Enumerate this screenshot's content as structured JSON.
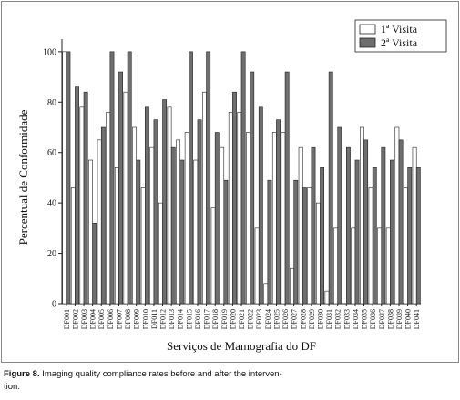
{
  "chart_data": {
    "type": "bar",
    "ylabel": "Percentual de Conformidade",
    "xlabel": "Serviços de Mamografia do DF",
    "categories": [
      "DF001",
      "DF002",
      "DF003",
      "DF004",
      "DF005",
      "DF006",
      "DF007",
      "DF008",
      "DF009",
      "DF010",
      "DF011",
      "DF012",
      "DF013",
      "DF014",
      "DF015",
      "DF016",
      "DF017",
      "DF018",
      "DF019",
      "DF020",
      "DF021",
      "DF022",
      "DF023",
      "DF024",
      "DF025",
      "DF026",
      "DF027",
      "DF028",
      "DF029",
      "DF030",
      "DF031",
      "DF032",
      "DF033",
      "DF034",
      "DF035",
      "DF036",
      "DF037",
      "DF038",
      "DF039",
      "DF040",
      "DF041"
    ],
    "series": [
      {
        "name": "1ª Visita",
        "color": "#ffffff",
        "values": [
          100,
          46,
          78,
          57,
          65,
          76,
          54,
          84,
          70,
          46,
          62,
          40,
          78,
          65,
          68,
          57,
          84,
          38,
          62,
          76,
          76,
          68,
          30,
          8,
          68,
          68,
          14,
          62,
          46,
          40,
          5,
          30,
          0,
          30,
          70,
          46,
          30,
          30,
          70,
          46,
          62
        ]
      },
      {
        "name": "2ª Visita",
        "color": "#6e6e6e",
        "values": [
          100,
          86,
          84,
          32,
          70,
          100,
          92,
          100,
          57,
          78,
          73,
          81,
          62,
          57,
          100,
          73,
          100,
          68,
          49,
          84,
          100,
          92,
          78,
          49,
          73,
          92,
          49,
          46,
          62,
          54,
          92,
          70,
          62,
          57,
          65,
          54,
          62,
          57,
          65,
          54,
          54
        ]
      }
    ],
    "ylim": [
      0,
      105
    ],
    "yticks": [
      0,
      20,
      40,
      60,
      80,
      100
    ],
    "legend": "top-right",
    "caption_label": "Figure 8.",
    "caption_lines": [
      "Imaging quality compliance rates before and after the interven-",
      "tion."
    ]
  }
}
